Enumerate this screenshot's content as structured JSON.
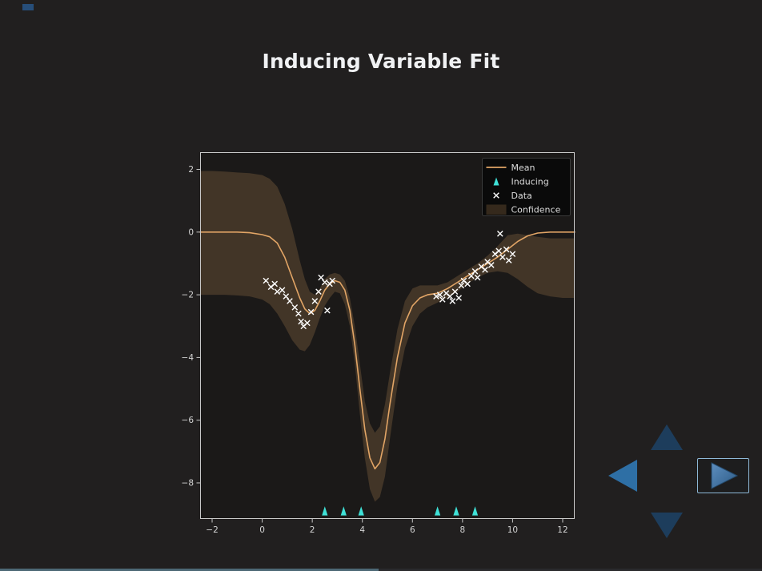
{
  "window": {
    "bg_color": "#211f1f",
    "plot_bg_color": "#1b1918",
    "title": "Inducing Variable Fit"
  },
  "chart_data": {
    "type": "line",
    "title": "Inducing Variable Fit",
    "xlabel": "",
    "ylabel": "",
    "xlim": [
      -2.48,
      12.48
    ],
    "ylim": [
      -9.15,
      2.55
    ],
    "grid": false,
    "x_tick_values": [
      -2,
      0,
      2,
      4,
      6,
      8,
      10,
      12
    ],
    "x_tick_labels": [
      "−2",
      "0",
      "2",
      "4",
      "6",
      "8",
      "10",
      "12"
    ],
    "y_tick_values": [
      2,
      0,
      -2,
      -4,
      -6,
      -8
    ],
    "y_tick_labels": [
      "2",
      "0",
      "−2",
      "−4",
      "−6",
      "−8"
    ],
    "legend": {
      "position": "upper-right",
      "entries": [
        {
          "label": "Mean",
          "type": "line",
          "color": "#e2a566"
        },
        {
          "label": "Inducing",
          "type": "triangle-marker",
          "color": "#3fe0d6"
        },
        {
          "label": "Data",
          "type": "x-marker",
          "color": "#ffffff"
        },
        {
          "label": "Confidence",
          "type": "patch",
          "color": "#e2a566",
          "opacity": 0.2
        }
      ]
    },
    "series": [
      {
        "name": "Mean",
        "type": "line",
        "color": "#e2a566",
        "x": [
          -2.48,
          -2.0,
          -1.5,
          -1.0,
          -0.5,
          0.0,
          0.3,
          0.6,
          0.9,
          1.2,
          1.5,
          1.7,
          1.9,
          2.1,
          2.3,
          2.5,
          2.7,
          2.9,
          3.1,
          3.3,
          3.5,
          3.7,
          3.9,
          4.1,
          4.3,
          4.5,
          4.7,
          4.9,
          5.1,
          5.4,
          5.7,
          6.0,
          6.3,
          6.6,
          7.0,
          7.4,
          7.8,
          8.2,
          8.6,
          9.0,
          9.4,
          9.8,
          10.2,
          10.6,
          11.0,
          11.5,
          12.0,
          12.48
        ],
        "y": [
          0.0,
          0.0,
          0.0,
          0.0,
          -0.02,
          -0.08,
          -0.15,
          -0.35,
          -0.8,
          -1.45,
          -2.1,
          -2.45,
          -2.6,
          -2.5,
          -2.2,
          -1.85,
          -1.65,
          -1.55,
          -1.6,
          -1.85,
          -2.5,
          -3.6,
          -5.0,
          -6.3,
          -7.2,
          -7.55,
          -7.35,
          -6.6,
          -5.5,
          -4.0,
          -2.9,
          -2.35,
          -2.1,
          -2.0,
          -1.95,
          -1.8,
          -1.6,
          -1.4,
          -1.2,
          -1.0,
          -0.8,
          -0.55,
          -0.3,
          -0.12,
          -0.03,
          0.0,
          0.0,
          0.0
        ]
      },
      {
        "name": "Confidence",
        "type": "band",
        "color": "#e2a566",
        "opacity": 0.2,
        "x": [
          -2.48,
          -2.0,
          -1.5,
          -1.0,
          -0.5,
          0.0,
          0.3,
          0.6,
          0.9,
          1.2,
          1.5,
          1.7,
          1.9,
          2.1,
          2.3,
          2.5,
          2.7,
          2.9,
          3.1,
          3.3,
          3.5,
          3.7,
          3.9,
          4.1,
          4.3,
          4.5,
          4.7,
          4.9,
          5.1,
          5.4,
          5.7,
          6.0,
          6.3,
          6.6,
          7.0,
          7.4,
          7.8,
          8.2,
          8.6,
          9.0,
          9.4,
          9.8,
          10.2,
          10.6,
          11.0,
          11.5,
          12.0,
          12.48
        ],
        "upper": [
          1.95,
          1.95,
          1.93,
          1.9,
          1.88,
          1.82,
          1.7,
          1.45,
          0.9,
          0.1,
          -0.9,
          -1.5,
          -1.9,
          -2.0,
          -1.8,
          -1.5,
          -1.35,
          -1.3,
          -1.35,
          -1.55,
          -2.1,
          -3.0,
          -4.2,
          -5.4,
          -6.1,
          -6.4,
          -6.2,
          -5.5,
          -4.5,
          -3.1,
          -2.2,
          -1.8,
          -1.7,
          -1.7,
          -1.7,
          -1.6,
          -1.4,
          -1.2,
          -1.0,
          -0.75,
          -0.45,
          -0.1,
          -0.05,
          -0.1,
          -0.15,
          -0.2,
          -0.2,
          -0.2
        ],
        "lower": [
          -2.0,
          -2.0,
          -2.0,
          -2.02,
          -2.05,
          -2.15,
          -2.3,
          -2.6,
          -3.0,
          -3.45,
          -3.75,
          -3.8,
          -3.6,
          -3.2,
          -2.75,
          -2.35,
          -2.1,
          -1.9,
          -1.95,
          -2.3,
          -3.0,
          -4.2,
          -5.8,
          -7.2,
          -8.2,
          -8.6,
          -8.45,
          -7.8,
          -6.6,
          -4.9,
          -3.7,
          -3.0,
          -2.6,
          -2.4,
          -2.25,
          -2.1,
          -1.9,
          -1.65,
          -1.45,
          -1.3,
          -1.25,
          -1.3,
          -1.5,
          -1.75,
          -1.95,
          -2.05,
          -2.1,
          -2.1
        ]
      },
      {
        "name": "Data",
        "type": "scatter",
        "marker": "x",
        "color": "#ffffff",
        "x": [
          0.15,
          0.35,
          0.5,
          0.6,
          0.8,
          0.95,
          1.1,
          1.3,
          1.45,
          1.55,
          1.65,
          1.8,
          1.95,
          2.1,
          2.25,
          2.35,
          2.5,
          2.6,
          2.7,
          2.8,
          6.95,
          7.1,
          7.2,
          7.35,
          7.5,
          7.6,
          7.7,
          7.85,
          7.95,
          8.05,
          8.2,
          8.35,
          8.5,
          8.6,
          8.75,
          8.9,
          9.0,
          9.15,
          9.3,
          9.45,
          9.5,
          9.6,
          9.75,
          9.85,
          10.0
        ],
        "y": [
          -1.55,
          -1.75,
          -1.65,
          -1.9,
          -1.85,
          -2.05,
          -2.2,
          -2.4,
          -2.6,
          -2.85,
          -3.0,
          -2.9,
          -2.55,
          -2.2,
          -1.9,
          -1.45,
          -1.6,
          -2.5,
          -1.65,
          -1.55,
          -2.05,
          -2.0,
          -2.15,
          -1.95,
          -2.05,
          -2.2,
          -1.9,
          -2.1,
          -1.7,
          -1.55,
          -1.65,
          -1.4,
          -1.25,
          -1.45,
          -1.1,
          -1.2,
          -0.95,
          -1.05,
          -0.7,
          -0.6,
          -0.05,
          -0.8,
          -0.55,
          -0.9,
          -0.7
        ]
      },
      {
        "name": "Inducing",
        "type": "scatter",
        "marker": "triangle-up",
        "color": "#3fe0d6",
        "x": [
          2.5,
          3.25,
          3.95,
          7.0,
          7.75,
          8.5
        ],
        "y": [
          -8.9,
          -8.9,
          -8.9,
          -8.9,
          -8.9,
          -8.9
        ]
      }
    ]
  },
  "nav": {
    "up_icon": "chevron-up",
    "down_icon": "chevron-down",
    "left_icon": "arrow-left",
    "right_icon": "arrow-right",
    "up_color": "#1d3d5c",
    "down_color": "#1d3d5c",
    "left_color": "#2e6fa5",
    "right_color": "#3b74a8",
    "right_border_color": "#8fb9d8"
  },
  "progress": {
    "fraction": 0.497
  }
}
